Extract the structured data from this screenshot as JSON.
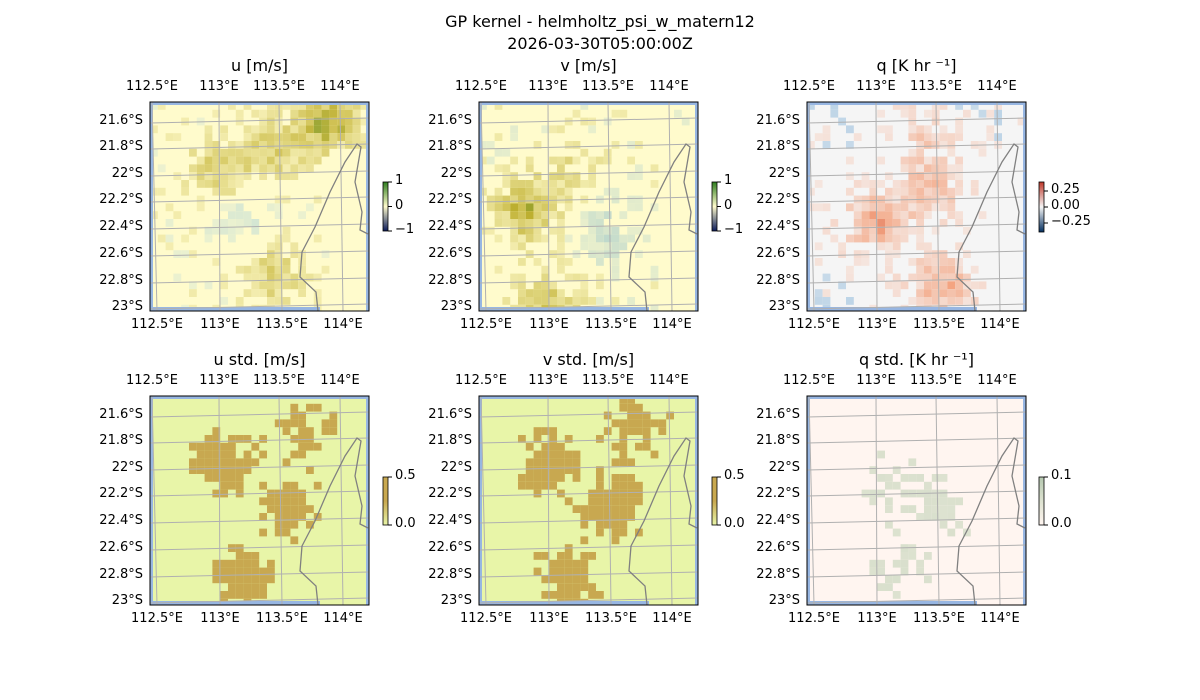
{
  "figure": {
    "title": "GP kernel - helmholtz_psi_w_matern12",
    "subtitle": "2026-03-30T05:00:00Z"
  },
  "lon_ticks": [
    "112.5°E",
    "113°E",
    "113.5°E",
    "114°E"
  ],
  "lat_ticks": [
    "21.6°S",
    "21.8°S",
    "22°S",
    "22.2°S",
    "22.4°S",
    "22.6°S",
    "22.8°S",
    "23°S"
  ],
  "panels": [
    {
      "title": "u [m/s]",
      "colorbar_ticks": [
        "1",
        "0",
        "−1"
      ],
      "bg": "#fffbcc",
      "low": "#b8d8d8",
      "high": "#2e7d1e",
      "mid": "#c8b840"
    },
    {
      "title": "v [m/s]",
      "colorbar_ticks": [
        "1",
        "0",
        "−1"
      ],
      "bg": "#fffbcc",
      "low": "#a8cccc",
      "high": "#2e7d1e",
      "mid": "#c0b030"
    },
    {
      "title": "q [K hr ⁻¹]",
      "colorbar_ticks": [
        "0.25",
        "0.00",
        "−0.25"
      ],
      "bg": "#f5f5f5",
      "low": "#4a90c8",
      "high": "#c0392b",
      "mid": "#f4a582"
    },
    {
      "title": "u std. [m/s]",
      "colorbar_ticks": [
        "0.5",
        "0.0"
      ],
      "bg": "#e8f5a8",
      "low": "#e8f5a8",
      "high": "#c8a850",
      "mid": "#c8a850"
    },
    {
      "title": "v std. [m/s]",
      "colorbar_ticks": [
        "0.5",
        "0.0"
      ],
      "bg": "#e8f5a8",
      "low": "#e8f5a8",
      "high": "#c8a850",
      "mid": "#c8a850"
    },
    {
      "title": "q std. [K hr ⁻¹]",
      "colorbar_ticks": [
        "0.1",
        "0.0"
      ],
      "bg": "#fff5f0",
      "low": "#fff5f0",
      "high": "#b5c8b0",
      "mid": "#dde2d0"
    }
  ]
}
